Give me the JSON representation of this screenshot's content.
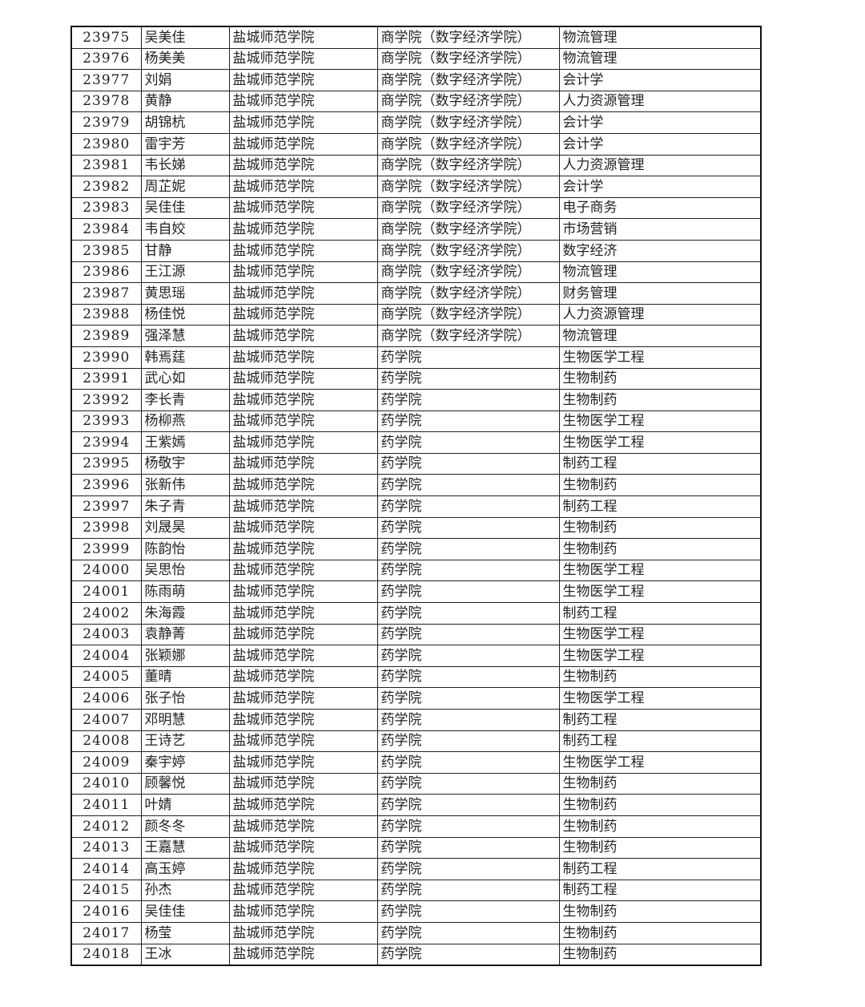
{
  "rows": [
    [
      "23975",
      "吴美佳",
      "盐城师范学院",
      "商学院（数字经济学院）",
      "物流管理"
    ],
    [
      "23976",
      "杨美美",
      "盐城师范学院",
      "商学院（数字经济学院）",
      "物流管理"
    ],
    [
      "23977",
      "刘娟",
      "盐城师范学院",
      "商学院（数字经济学院）",
      "会计学"
    ],
    [
      "23978",
      "黄静",
      "盐城师范学院",
      "商学院（数字经济学院）",
      "人力资源管理"
    ],
    [
      "23979",
      "胡锦杭",
      "盐城师范学院",
      "商学院（数字经济学院）",
      "会计学"
    ],
    [
      "23980",
      "雷宇芳",
      "盐城师范学院",
      "商学院（数字经济学院）",
      "会计学"
    ],
    [
      "23981",
      "韦长娣",
      "盐城师范学院",
      "商学院（数字经济学院）",
      "人力资源管理"
    ],
    [
      "23982",
      "周芷妮",
      "盐城师范学院",
      "商学院（数字经济学院）",
      "会计学"
    ],
    [
      "23983",
      "吴佳佳",
      "盐城师范学院",
      "商学院（数字经济学院）",
      "电子商务"
    ],
    [
      "23984",
      "韦自姣",
      "盐城师范学院",
      "商学院（数字经济学院）",
      "市场营销"
    ],
    [
      "23985",
      "甘静",
      "盐城师范学院",
      "商学院（数字经济学院）",
      "数字经济"
    ],
    [
      "23986",
      "王江源",
      "盐城师范学院",
      "商学院（数字经济学院）",
      "物流管理"
    ],
    [
      "23987",
      "黄思瑶",
      "盐城师范学院",
      "商学院（数字经济学院）",
      "财务管理"
    ],
    [
      "23988",
      "杨佳悦",
      "盐城师范学院",
      "商学院（数字经济学院）",
      "人力资源管理"
    ],
    [
      "23989",
      "强泽慧",
      "盐城师范学院",
      "商学院（数字经济学院）",
      "物流管理"
    ],
    [
      "23990",
      "韩焉莛",
      "盐城师范学院",
      "药学院",
      "生物医学工程"
    ],
    [
      "23991",
      "武心如",
      "盐城师范学院",
      "药学院",
      "生物制药"
    ],
    [
      "23992",
      "李长青",
      "盐城师范学院",
      "药学院",
      "生物制药"
    ],
    [
      "23993",
      "杨柳燕",
      "盐城师范学院",
      "药学院",
      "生物医学工程"
    ],
    [
      "23994",
      "王紫嫣",
      "盐城师范学院",
      "药学院",
      "生物医学工程"
    ],
    [
      "23995",
      "杨敬宇",
      "盐城师范学院",
      "药学院",
      "制药工程"
    ],
    [
      "23996",
      "张新伟",
      "盐城师范学院",
      "药学院",
      "生物制药"
    ],
    [
      "23997",
      "朱子青",
      "盐城师范学院",
      "药学院",
      "制药工程"
    ],
    [
      "23998",
      "刘晟昊",
      "盐城师范学院",
      "药学院",
      "生物制药"
    ],
    [
      "23999",
      "陈韵怡",
      "盐城师范学院",
      "药学院",
      "生物制药"
    ],
    [
      "24000",
      "吴思怡",
      "盐城师范学院",
      "药学院",
      "生物医学工程"
    ],
    [
      "24001",
      "陈雨萌",
      "盐城师范学院",
      "药学院",
      "生物医学工程"
    ],
    [
      "24002",
      "朱海霞",
      "盐城师范学院",
      "药学院",
      "制药工程"
    ],
    [
      "24003",
      "袁静菁",
      "盐城师范学院",
      "药学院",
      "生物医学工程"
    ],
    [
      "24004",
      "张颖娜",
      "盐城师范学院",
      "药学院",
      "生物医学工程"
    ],
    [
      "24005",
      "董晴",
      "盐城师范学院",
      "药学院",
      "生物制药"
    ],
    [
      "24006",
      "张子怡",
      "盐城师范学院",
      "药学院",
      "生物医学工程"
    ],
    [
      "24007",
      "邓明慧",
      "盐城师范学院",
      "药学院",
      "制药工程"
    ],
    [
      "24008",
      "王诗艺",
      "盐城师范学院",
      "药学院",
      "制药工程"
    ],
    [
      "24009",
      "秦宇婷",
      "盐城师范学院",
      "药学院",
      "生物医学工程"
    ],
    [
      "24010",
      "顾馨悦",
      "盐城师范学院",
      "药学院",
      "生物制药"
    ],
    [
      "24011",
      "叶婧",
      "盐城师范学院",
      "药学院",
      "生物制药"
    ],
    [
      "24012",
      "颜冬冬",
      "盐城师范学院",
      "药学院",
      "生物制药"
    ],
    [
      "24013",
      "王嘉慧",
      "盐城师范学院",
      "药学院",
      "生物制药"
    ],
    [
      "24014",
      "高玉婷",
      "盐城师范学院",
      "药学院",
      "制药工程"
    ],
    [
      "24015",
      "孙杰",
      "盐城师范学院",
      "药学院",
      "制药工程"
    ],
    [
      "24016",
      "吴佳佳",
      "盐城师范学院",
      "药学院",
      "生物制药"
    ],
    [
      "24017",
      "杨莹",
      "盐城师范学院",
      "药学院",
      "生物制药"
    ],
    [
      "24018",
      "王冰",
      "盐城师范学院",
      "药学院",
      "生物制药"
    ]
  ]
}
